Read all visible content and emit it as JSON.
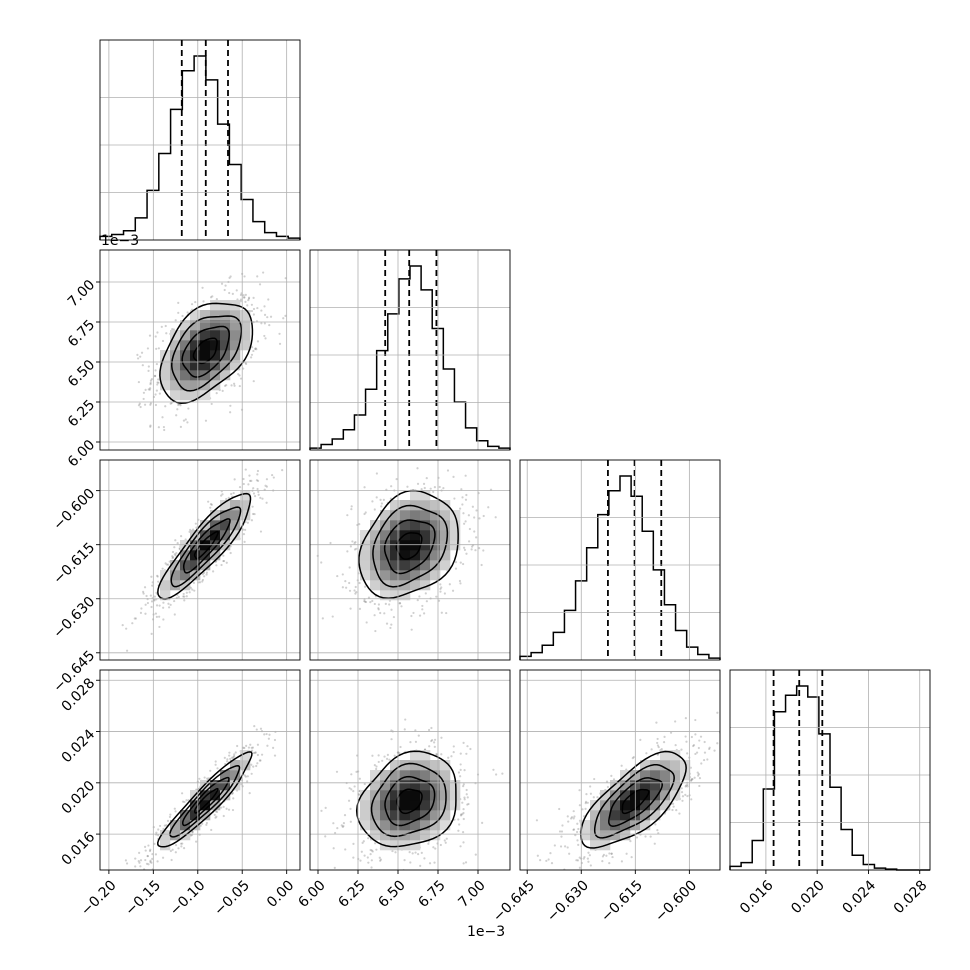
{
  "chart_data": {
    "type": "corner",
    "n_params": 4,
    "grid": true,
    "offset_labels": {
      "param1_y": "1e−3",
      "param1_x": "1e−3"
    },
    "params": [
      {
        "index": 0,
        "range": [
          -0.21,
          0.015
        ],
        "ticks": [
          -0.2,
          -0.15,
          -0.1,
          -0.05,
          0.0
        ],
        "tick_labels": [
          "−0.20",
          "−0.15",
          "−0.10",
          "−0.05",
          "0.00"
        ],
        "quantiles": [
          -0.118,
          -0.091,
          -0.066
        ],
        "mean": -0.091,
        "sd": 0.026
      },
      {
        "index": 1,
        "range": [
          5.95,
          7.2
        ],
        "ticks": [
          6.0,
          6.25,
          6.5,
          6.75,
          7.0
        ],
        "tick_labels": [
          "6.00",
          "6.25",
          "6.50",
          "6.75",
          "7.00"
        ],
        "quantiles": [
          6.42,
          6.57,
          6.74
        ],
        "mean": 6.57,
        "sd": 0.155
      },
      {
        "index": 2,
        "range": [
          -0.647,
          -0.5915
        ],
        "ticks": [
          -0.645,
          -0.63,
          -0.615,
          -0.6
        ],
        "tick_labels": [
          "−0.645",
          "−0.630",
          "−0.615",
          "−0.600"
        ],
        "quantiles": [
          -0.6226,
          -0.6152,
          -0.6078
        ],
        "mean": -0.6152,
        "sd": 0.0073
      },
      {
        "index": 3,
        "range": [
          0.0132,
          0.0288
        ],
        "ticks": [
          0.016,
          0.02,
          0.024,
          0.028
        ],
        "tick_labels": [
          "0.016",
          "0.020",
          "0.024",
          "0.028"
        ],
        "quantiles": [
          0.0166,
          0.0186,
          0.0204
        ],
        "mean": 0.0186,
        "sd": 0.00185
      }
    ],
    "hist_heights": [
      [
        0.02,
        0.03,
        0.05,
        0.12,
        0.27,
        0.47,
        0.71,
        0.92,
        1.0,
        0.87,
        0.63,
        0.41,
        0.22,
        0.1,
        0.04,
        0.02,
        0.01
      ],
      [
        0.01,
        0.03,
        0.06,
        0.11,
        0.19,
        0.33,
        0.54,
        0.74,
        0.93,
        1.0,
        0.87,
        0.66,
        0.44,
        0.26,
        0.12,
        0.05,
        0.02,
        0.01
      ],
      [
        0.02,
        0.04,
        0.08,
        0.15,
        0.27,
        0.43,
        0.61,
        0.79,
        0.92,
        1.0,
        0.89,
        0.7,
        0.49,
        0.3,
        0.16,
        0.07,
        0.03,
        0.01
      ],
      [
        0.02,
        0.04,
        0.16,
        0.44,
        0.86,
        0.95,
        1.0,
        0.94,
        0.74,
        0.45,
        0.22,
        0.08,
        0.03,
        0.01,
        0.005,
        0.0,
        0.0,
        0.0
      ]
    ],
    "correlations": {
      "1-0": 0.45,
      "2-0": 0.88,
      "2-1": 0.25,
      "3-0": 0.93,
      "3-1": 0.2,
      "3-2": 0.7
    },
    "contour_levels": [
      0.5,
      1.0,
      1.5,
      2.0
    ]
  }
}
